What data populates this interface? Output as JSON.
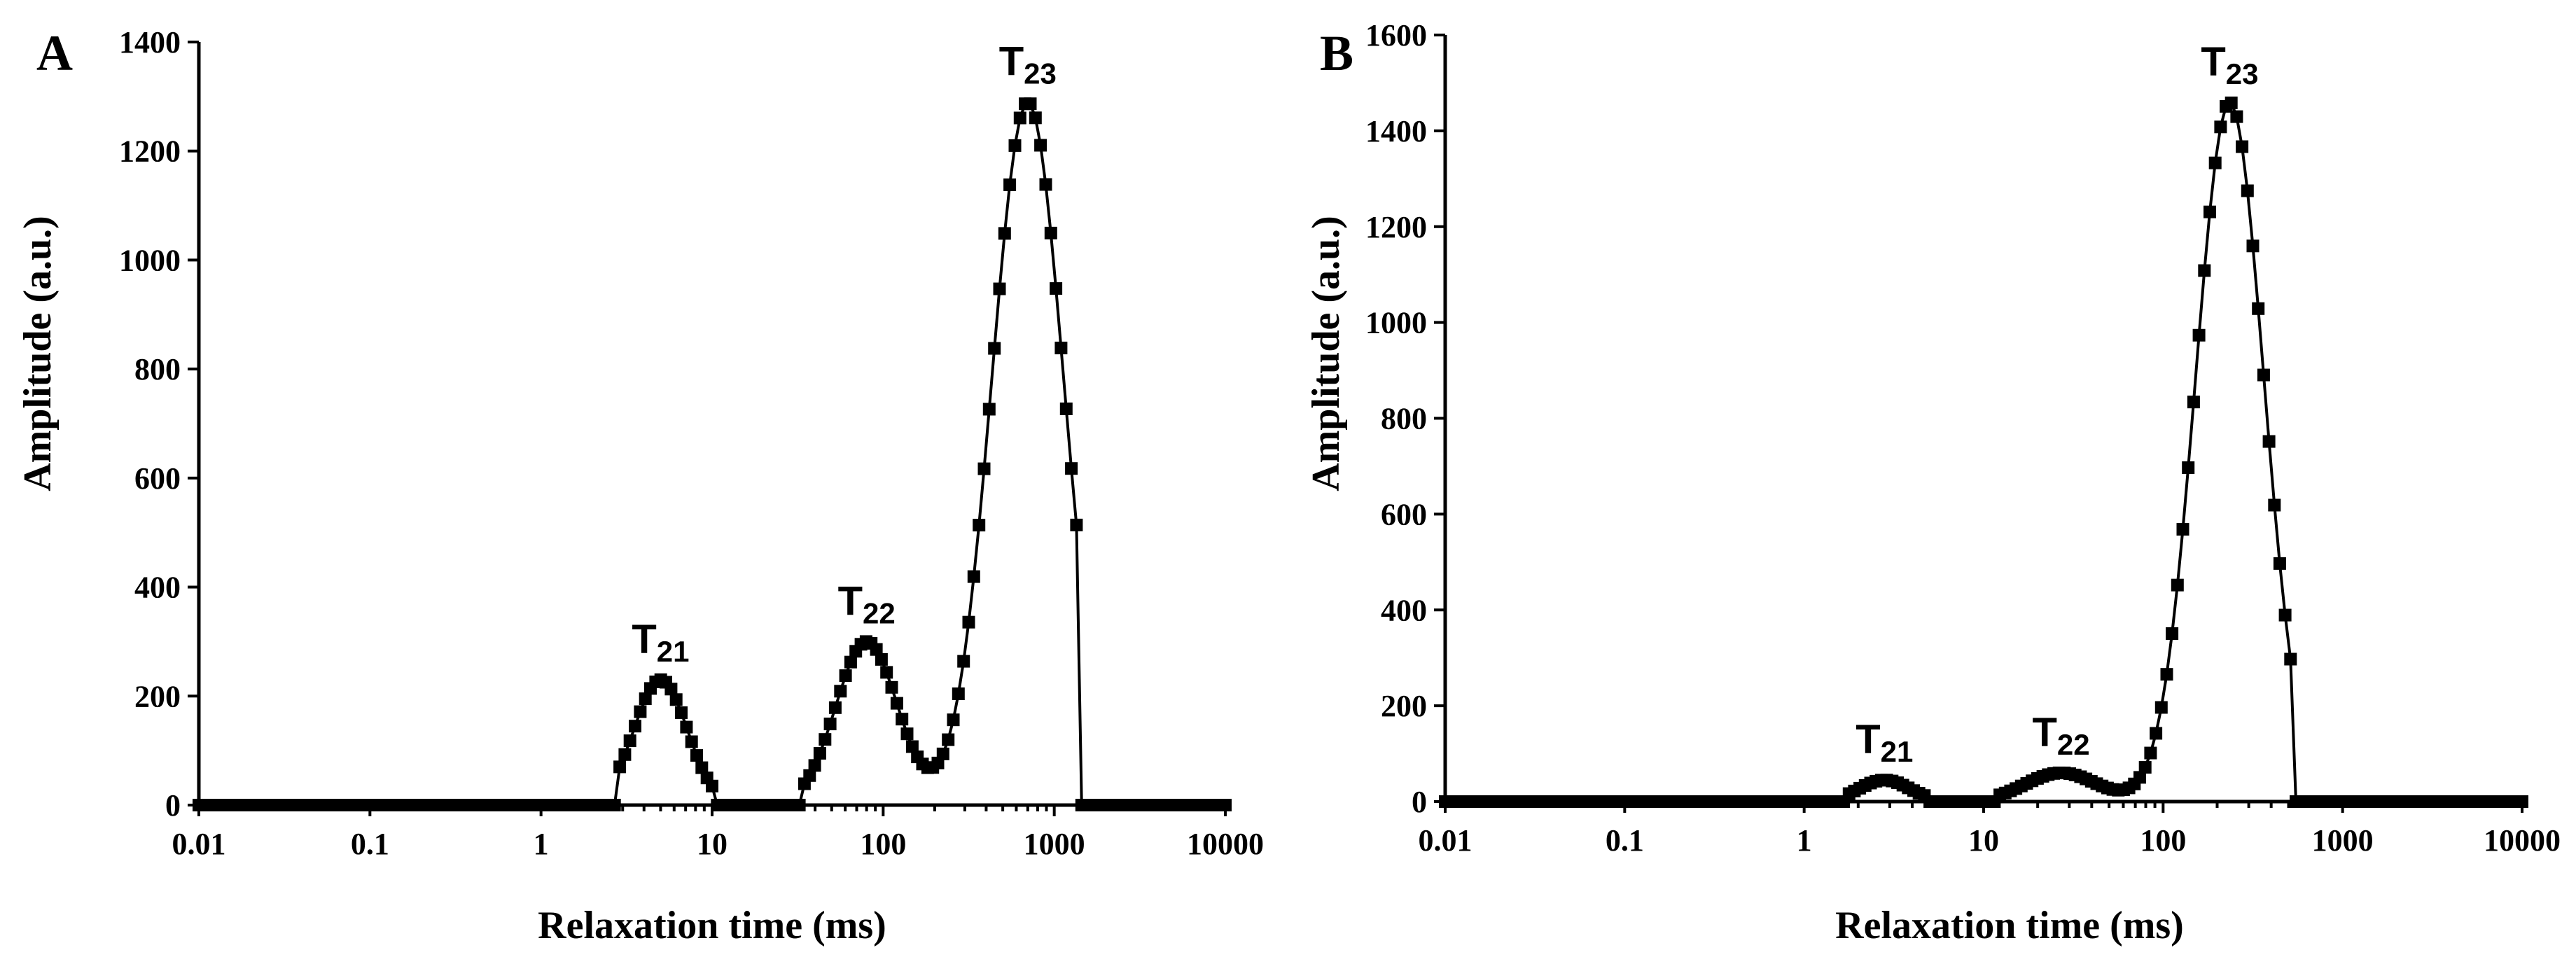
{
  "chart_data": [
    {
      "type": "line",
      "panel_label": "A",
      "xlabel": "Relaxation time (ms)",
      "ylabel": "Amplitude (a.u.)",
      "x_scale": "log",
      "xlim": [
        0.01,
        10000
      ],
      "ylim": [
        0,
        1400
      ],
      "x_ticks": [
        {
          "value": 0.01,
          "label": "0.01"
        },
        {
          "value": 0.1,
          "label": "0.1"
        },
        {
          "value": 1,
          "label": "1"
        },
        {
          "value": 10,
          "label": "10"
        },
        {
          "value": 100,
          "label": "100"
        },
        {
          "value": 1000,
          "label": "1000"
        },
        {
          "value": 10000,
          "label": "10000"
        }
      ],
      "y_ticks": [
        {
          "value": 0,
          "label": "0"
        },
        {
          "value": 200,
          "label": "200"
        },
        {
          "value": 400,
          "label": "400"
        },
        {
          "value": 600,
          "label": "600"
        },
        {
          "value": 800,
          "label": "800"
        },
        {
          "value": 1000,
          "label": "1000"
        },
        {
          "value": 1200,
          "label": "1200"
        },
        {
          "value": 1400,
          "label": "1400"
        }
      ],
      "peaks": [
        {
          "id": "T21",
          "base": "T",
          "sub": "21",
          "x": 5,
          "y": 230,
          "sigma_dec": 0.155
        },
        {
          "id": "T22",
          "base": "T",
          "sub": "22",
          "x": 80,
          "y": 300,
          "sigma_dec": 0.18
        },
        {
          "id": "T23",
          "base": "T",
          "sub": "23",
          "x": 700,
          "y": 1290,
          "sigma_dec": 0.21
        }
      ],
      "signal_ranges": [
        [
          2.7,
          10.5
        ],
        [
          33,
          1350
        ]
      ]
    },
    {
      "type": "line",
      "panel_label": "B",
      "xlabel": "Relaxation time (ms)",
      "ylabel": "Amplitude (a.u.)",
      "x_scale": "log",
      "xlim": [
        0.01,
        10000
      ],
      "ylim": [
        0,
        1600
      ],
      "x_ticks": [
        {
          "value": 0.01,
          "label": "0.01"
        },
        {
          "value": 0.1,
          "label": "0.1"
        },
        {
          "value": 1,
          "label": "1"
        },
        {
          "value": 10,
          "label": "10"
        },
        {
          "value": 100,
          "label": "100"
        },
        {
          "value": 1000,
          "label": "1000"
        },
        {
          "value": 10000,
          "label": "10000"
        }
      ],
      "y_ticks": [
        {
          "value": 0,
          "label": "0"
        },
        {
          "value": 200,
          "label": "200"
        },
        {
          "value": 400,
          "label": "400"
        },
        {
          "value": 600,
          "label": "600"
        },
        {
          "value": 800,
          "label": "800"
        },
        {
          "value": 1000,
          "label": "1000"
        },
        {
          "value": 1200,
          "label": "1200"
        },
        {
          "value": 1400,
          "label": "1400"
        },
        {
          "value": 1600,
          "label": "1600"
        }
      ],
      "peaks": [
        {
          "id": "T21",
          "base": "T",
          "sub": "21",
          "x": 2.8,
          "y": 45,
          "sigma_dec": 0.14
        },
        {
          "id": "T22",
          "base": "T",
          "sub": "22",
          "x": 27,
          "y": 60,
          "sigma_dec": 0.2
        },
        {
          "id": "T23",
          "base": "T",
          "sub": "23",
          "x": 235,
          "y": 1460,
          "sigma_dec": 0.19
        }
      ],
      "signal_ranges": [
        [
          1.7,
          4.8
        ],
        [
          12,
          520
        ]
      ]
    }
  ]
}
